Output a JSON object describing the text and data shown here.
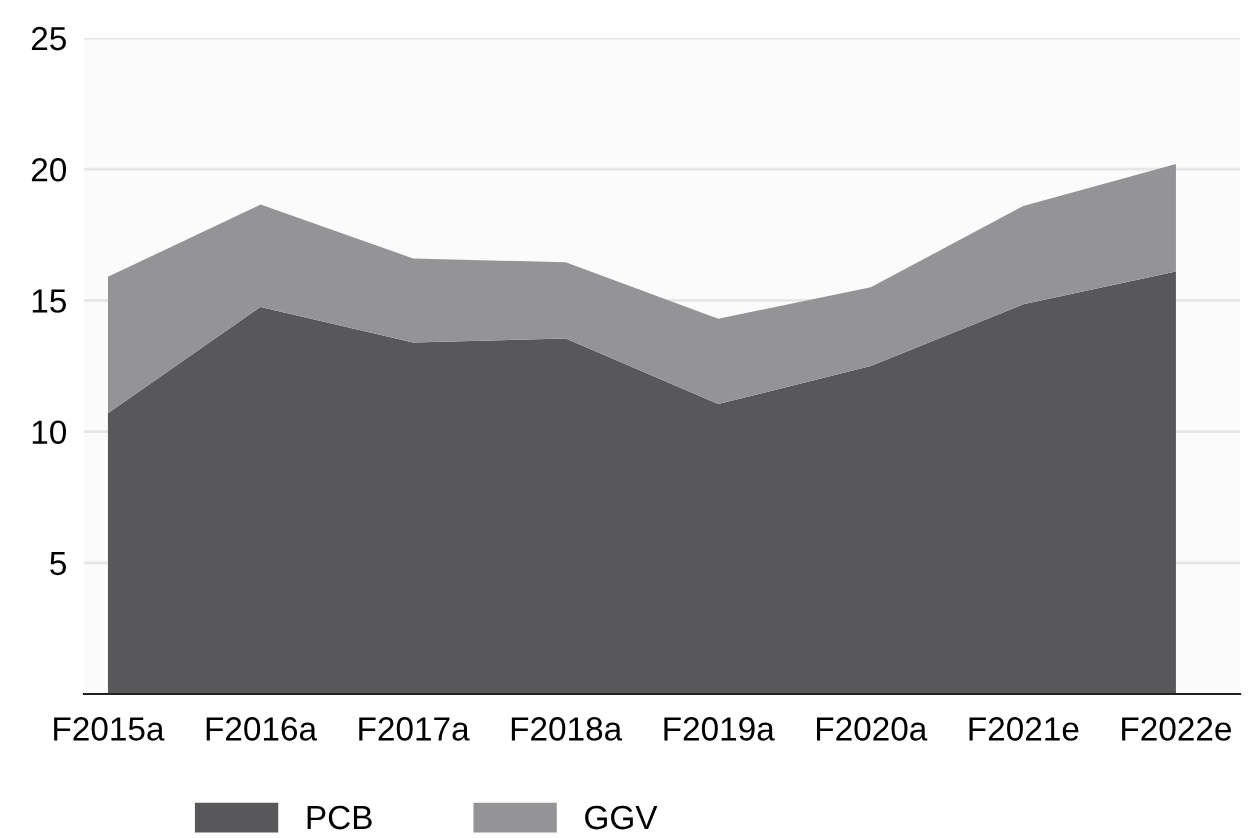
{
  "chart_data": {
    "type": "area",
    "stacked": true,
    "categories": [
      "F2015a",
      "F2016a",
      "F2017a",
      "F2018a",
      "F2019a",
      "F2020a",
      "F2021e",
      "F2022e"
    ],
    "series": [
      {
        "name": "PCB",
        "color": "#58585a",
        "values": [
          10.7,
          14.75,
          13.4,
          13.55,
          11.05,
          12.5,
          14.85,
          16.1
        ]
      },
      {
        "name": "GGV",
        "color": "#949497",
        "values": [
          5.2,
          3.9,
          3.2,
          2.9,
          3.25,
          3.0,
          3.75,
          4.1
        ]
      }
    ],
    "ylim": [
      0,
      25
    ],
    "yticks": [
      5,
      10,
      15,
      20,
      25
    ],
    "grid": "y",
    "legend": "bottom"
  }
}
